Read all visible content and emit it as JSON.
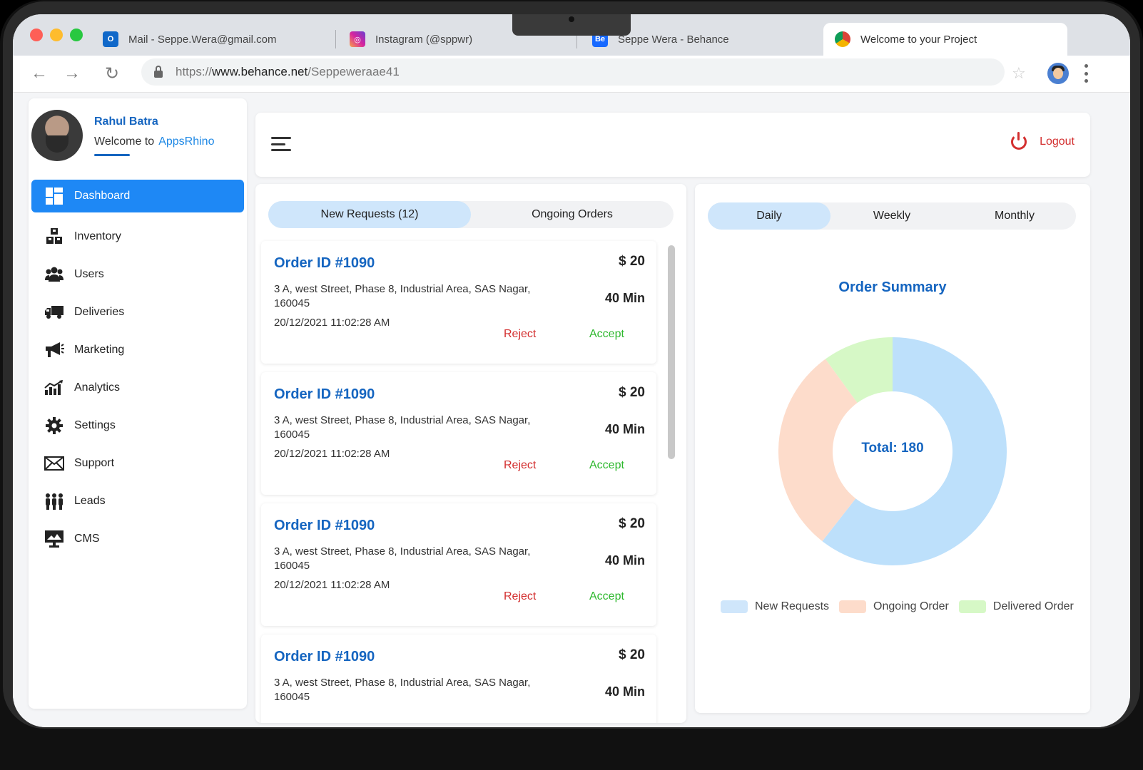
{
  "browser": {
    "tabs": [
      {
        "label": "Mail - Seppe.Wera@gmail.com",
        "icon": "outlook-icon"
      },
      {
        "label": "Instagram (@sppwr)",
        "icon": "instagram-icon"
      },
      {
        "label": "Seppe Wera - Behance",
        "icon": "behance-icon"
      },
      {
        "label": "Welcome to your Project",
        "icon": "chrome-icon"
      }
    ],
    "url_scheme": "https://",
    "url_host": "www.behance.net",
    "url_path": "/Seppeweraae41"
  },
  "user": {
    "name": "Rahul Batra",
    "welcome": "Welcome to",
    "brand": "AppsRhino"
  },
  "sidebar": {
    "items": [
      {
        "label": "Dashboard",
        "icon": "dashboard-icon"
      },
      {
        "label": "Inventory",
        "icon": "inventory-icon"
      },
      {
        "label": "Users",
        "icon": "users-icon"
      },
      {
        "label": "Deliveries",
        "icon": "truck-icon"
      },
      {
        "label": "Marketing",
        "icon": "megaphone-icon"
      },
      {
        "label": "Analytics",
        "icon": "analytics-icon"
      },
      {
        "label": "Settings",
        "icon": "gear-icon"
      },
      {
        "label": "Support",
        "icon": "mail-icon"
      },
      {
        "label": "Leads",
        "icon": "leads-icon"
      },
      {
        "label": "CMS",
        "icon": "cms-icon"
      }
    ]
  },
  "topbar": {
    "logout": "Logout"
  },
  "orders": {
    "tabs": [
      "New Requests (12)",
      "Ongoing Orders"
    ],
    "items": [
      {
        "id": "Order ID #1090",
        "price": "$ 20",
        "address": "3 A, west Street, Phase 8, Industrial Area, SAS Nagar, 160045",
        "eta": "40 Min",
        "timestamp": "20/12/2021  11:02:28 AM",
        "reject": "Reject",
        "accept": "Accept"
      },
      {
        "id": "Order ID #1090",
        "price": "$ 20",
        "address": "3 A, west Street, Phase 8, Industrial Area, SAS Nagar, 160045",
        "eta": "40 Min",
        "timestamp": "20/12/2021  11:02:28 AM",
        "reject": "Reject",
        "accept": "Accept"
      },
      {
        "id": "Order ID #1090",
        "price": "$ 20",
        "address": "3 A, west Street, Phase 8, Industrial Area, SAS Nagar, 160045",
        "eta": "40 Min",
        "timestamp": "20/12/2021  11:02:28 AM",
        "reject": "Reject",
        "accept": "Accept"
      },
      {
        "id": "Order ID #1090",
        "price": "$ 20",
        "address": "3 A, west Street, Phase 8, Industrial Area, SAS Nagar, 160045",
        "eta": "40 Min",
        "timestamp": "",
        "reject": "",
        "accept": ""
      }
    ]
  },
  "summary": {
    "tabs": [
      "Daily",
      "Weekly",
      "Monthly"
    ],
    "title": "Order Summary",
    "total": "Total: 180",
    "legend": [
      "New Requests",
      "Ongoing Order",
      "Delivered Order"
    ]
  },
  "chart_data": {
    "type": "pie",
    "title": "Order Summary",
    "categories": [
      "New Requests",
      "Ongoing Order",
      "Delivered Order"
    ],
    "values": [
      109,
      53,
      18
    ],
    "colors": [
      "#bde0fb",
      "#fddccb",
      "#d6f8c6"
    ],
    "donut": true,
    "center_label": "Total: 180",
    "legend_position": "bottom"
  },
  "colors": {
    "accent": "#1e88f5",
    "brand_blue": "#1565c0",
    "reject": "#d32f2f",
    "accept": "#2eb82e"
  }
}
